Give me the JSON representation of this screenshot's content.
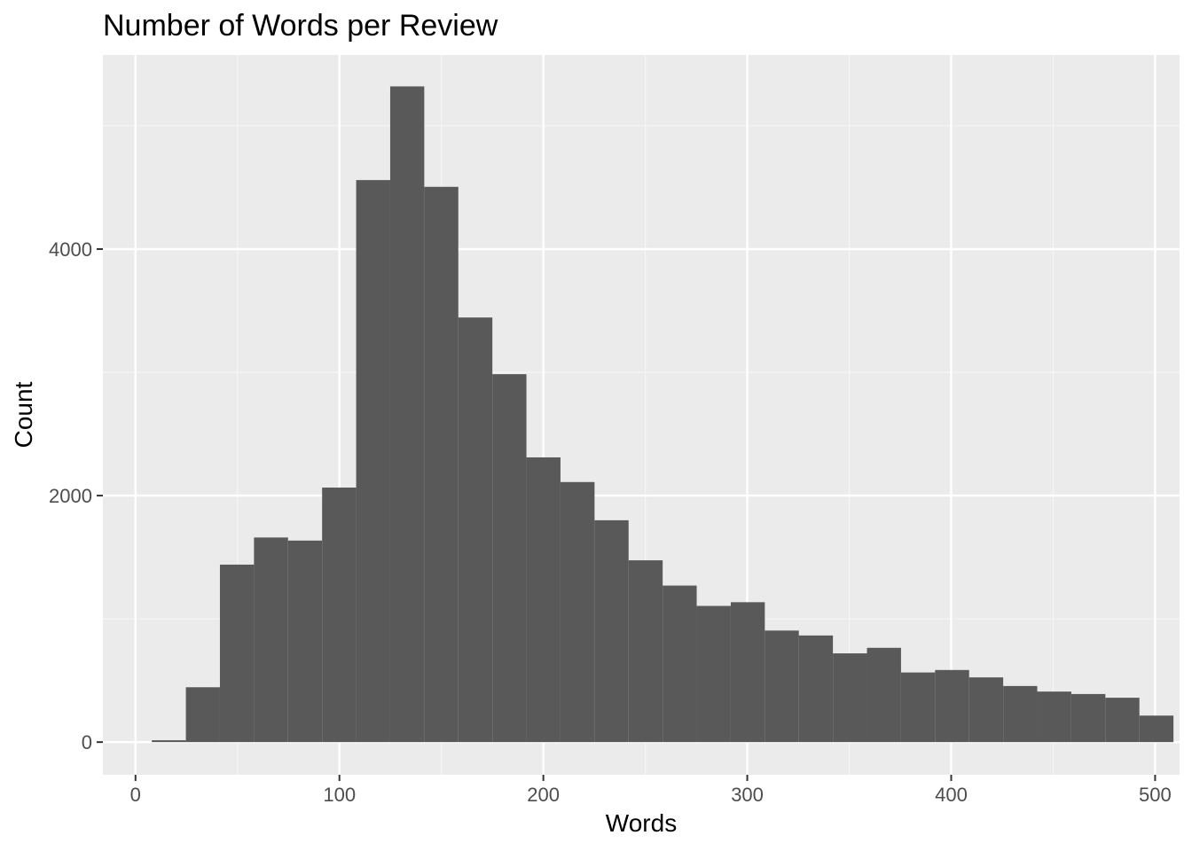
{
  "chart_data": {
    "type": "bar",
    "title": "Number of Words per Review",
    "xlabel": "Words",
    "ylabel": "Count",
    "bin_width": 16.7,
    "bins": [
      {
        "x0": 8.0,
        "x1": 24.7,
        "count": 15
      },
      {
        "x0": 24.7,
        "x1": 41.4,
        "count": 445
      },
      {
        "x0": 41.4,
        "x1": 58.1,
        "count": 1440
      },
      {
        "x0": 58.1,
        "x1": 74.8,
        "count": 1660
      },
      {
        "x0": 74.8,
        "x1": 91.5,
        "count": 1635
      },
      {
        "x0": 91.5,
        "x1": 108.2,
        "count": 2065
      },
      {
        "x0": 108.2,
        "x1": 124.9,
        "count": 4560
      },
      {
        "x0": 124.9,
        "x1": 141.6,
        "count": 5320
      },
      {
        "x0": 141.6,
        "x1": 158.3,
        "count": 4505
      },
      {
        "x0": 158.3,
        "x1": 175.0,
        "count": 3445
      },
      {
        "x0": 175.0,
        "x1": 191.7,
        "count": 2985
      },
      {
        "x0": 191.7,
        "x1": 208.4,
        "count": 2310
      },
      {
        "x0": 208.4,
        "x1": 225.1,
        "count": 2110
      },
      {
        "x0": 225.1,
        "x1": 241.8,
        "count": 1800
      },
      {
        "x0": 241.8,
        "x1": 258.5,
        "count": 1475
      },
      {
        "x0": 258.5,
        "x1": 275.2,
        "count": 1270
      },
      {
        "x0": 275.2,
        "x1": 291.9,
        "count": 1105
      },
      {
        "x0": 291.9,
        "x1": 308.6,
        "count": 1135
      },
      {
        "x0": 308.6,
        "x1": 325.3,
        "count": 905
      },
      {
        "x0": 325.3,
        "x1": 342.0,
        "count": 865
      },
      {
        "x0": 342.0,
        "x1": 358.7,
        "count": 720
      },
      {
        "x0": 358.7,
        "x1": 375.4,
        "count": 765
      },
      {
        "x0": 375.4,
        "x1": 392.1,
        "count": 565
      },
      {
        "x0": 392.1,
        "x1": 408.8,
        "count": 585
      },
      {
        "x0": 408.8,
        "x1": 425.5,
        "count": 525
      },
      {
        "x0": 425.5,
        "x1": 442.2,
        "count": 455
      },
      {
        "x0": 442.2,
        "x1": 458.9,
        "count": 410
      },
      {
        "x0": 458.9,
        "x1": 475.6,
        "count": 390
      },
      {
        "x0": 475.6,
        "x1": 492.3,
        "count": 360
      },
      {
        "x0": 492.3,
        "x1": 509.0,
        "count": 215
      }
    ],
    "xlim": [
      -16,
      512
    ],
    "ylim": [
      -265,
      5575
    ],
    "x_ticks": [
      0,
      100,
      200,
      300,
      400,
      500
    ],
    "y_ticks": [
      0,
      2000,
      4000
    ],
    "x_minor_ticks": [
      50,
      150,
      250,
      350,
      450
    ],
    "y_minor_ticks": [
      1000,
      3000,
      5000
    ],
    "grid": true,
    "legend": "none",
    "colors": {
      "bar_fill": "#595959",
      "panel_background": "#ebebeb",
      "grid_major": "#ffffff",
      "grid_minor": "#f5f5f5",
      "tick_color": "#333333"
    }
  }
}
